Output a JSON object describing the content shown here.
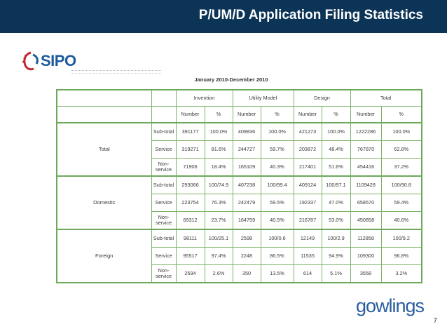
{
  "header": {
    "title": "P/UM/D Application Filing Statistics"
  },
  "logo": {
    "text": "SIPO",
    "mark_icon": "sipo-globe-icon"
  },
  "table": {
    "caption": "January 2010-December 2010",
    "groups": [
      "Invention",
      "Utility Model",
      "Design",
      "Total"
    ],
    "subheaders": [
      "Number",
      "%",
      "Number",
      "%",
      "Number",
      "%",
      "Number",
      "%"
    ],
    "sections": [
      {
        "name": "Total",
        "rows": [
          {
            "label": "Sub-total",
            "values": [
              "391177",
              "100.0%",
              "409836",
              "100.0%",
              "421273",
              "100.0%",
              "1222286",
              "100.0%"
            ]
          },
          {
            "label": "Service",
            "values": [
              "319271",
              "81.6%",
              "244727",
              "59.7%",
              "203872",
              "48.4%",
              "767870",
              "62.8%"
            ]
          },
          {
            "label": "Non-service",
            "values": [
              "71906",
              "18.4%",
              "165109",
              "40.3%",
              "217401",
              "51.6%",
              "454416",
              "37.2%"
            ]
          }
        ]
      },
      {
        "name": "Domestic",
        "rows": [
          {
            "label": "Sub-total",
            "values": [
              "293066",
              "100/74.9",
              "407238",
              "100/99.4",
              "409124",
              "100/97.1",
              "1109428",
              "100/90.8"
            ]
          },
          {
            "label": "Service",
            "values": [
              "223754",
              "76.3%",
              "242479",
              "59.5%",
              "192337",
              "47.0%",
              "658570",
              "59.4%"
            ]
          },
          {
            "label": "Non-service",
            "values": [
              "69312",
              "23.7%",
              "164759",
              "40.5%",
              "216787",
              "53.0%",
              "450858",
              "40.6%"
            ]
          }
        ]
      },
      {
        "name": "Foreign",
        "rows": [
          {
            "label": "Sub-total",
            "values": [
              "98111",
              "100/25.1",
              "2598",
              "100/0.6",
              "12149",
              "100/2.9",
              "112858",
              "100/9.2"
            ]
          },
          {
            "label": "Service",
            "values": [
              "95517",
              "97.4%",
              "2248",
              "86.5%",
              "11535",
              "94.9%",
              "109300",
              "96.8%"
            ]
          },
          {
            "label": "Non-service",
            "values": [
              "2594",
              "2.6%",
              "350",
              "13.5%",
              "614",
              "5.1%",
              "3558",
              "3.2%"
            ]
          }
        ]
      }
    ]
  },
  "footer": {
    "brand": "gowlings",
    "page_number": "7"
  },
  "colors": {
    "header_bg": "#0c3457",
    "table_border": "#6ea85b",
    "brand_blue": "#2a5f9e"
  }
}
